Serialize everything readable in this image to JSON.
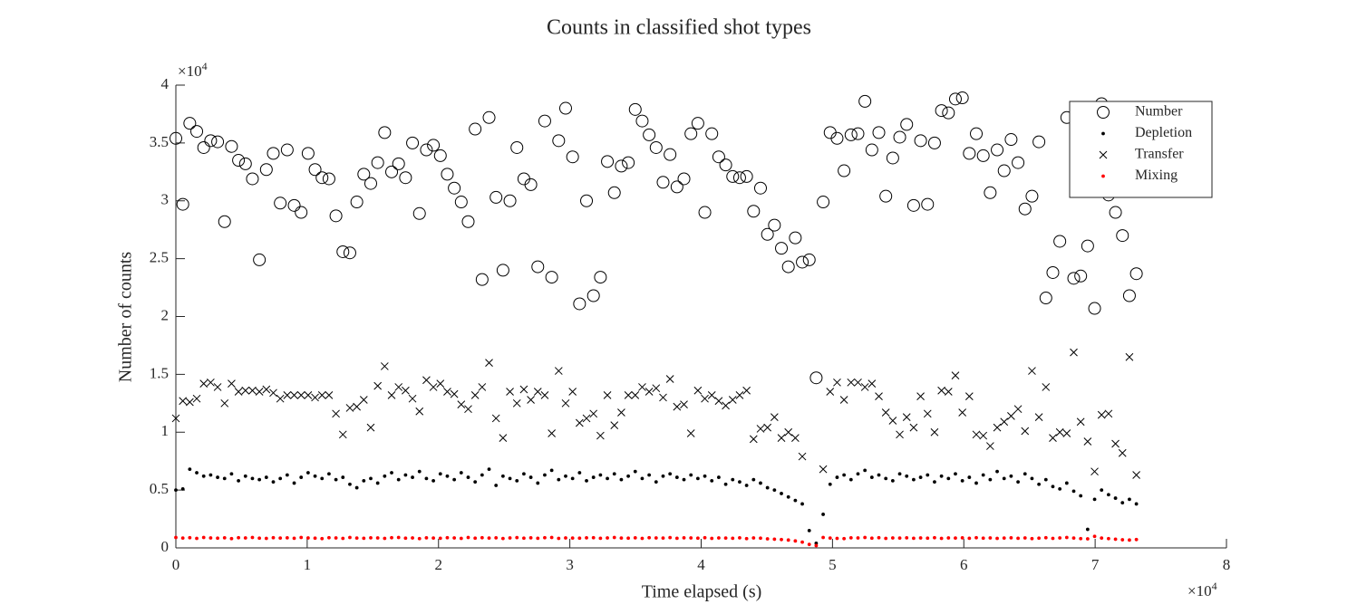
{
  "chart_data": {
    "type": "scatter",
    "title": "Counts in classified shot types",
    "x_label": "Time elapsed (s)",
    "y_label": "Number of counts",
    "x_exponent": {
      "base": "×10",
      "power": "4"
    },
    "y_exponent": {
      "base": "×10",
      "power": "4"
    },
    "xlim": [
      0,
      80000
    ],
    "ylim": [
      0,
      40000
    ],
    "xticks": [
      0,
      {
        "value": 10000,
        "label": "1"
      },
      {
        "value": 20000,
        "label": "2"
      },
      {
        "value": 30000,
        "label": "3"
      },
      {
        "value": 40000,
        "label": "4"
      },
      {
        "value": 50000,
        "label": "5"
      },
      {
        "value": 60000,
        "label": "6"
      },
      {
        "value": 70000,
        "label": "7"
      },
      {
        "value": 80000,
        "label": "8"
      }
    ],
    "yticks": [
      0,
      {
        "value": 5000,
        "label": "0.5"
      },
      {
        "value": 10000,
        "label": "1"
      },
      {
        "value": 15000,
        "label": "1.5"
      },
      {
        "value": 20000,
        "label": "2"
      },
      {
        "value": 25000,
        "label": "2.5"
      },
      {
        "value": 30000,
        "label": "3"
      },
      {
        "value": 35000,
        "label": "3.5"
      },
      {
        "value": 40000,
        "label": "4"
      }
    ],
    "grid": false,
    "legend": "top-right",
    "x": [
      0,
      530,
      1060,
      1590,
      2120,
      2650,
      3180,
      3710,
      4240,
      4770,
      5300,
      5830,
      6360,
      6890,
      7420,
      7950,
      8480,
      9010,
      9540,
      10070,
      10600,
      11130,
      11660,
      12190,
      12720,
      13250,
      13780,
      14310,
      14840,
      15370,
      15900,
      16430,
      16960,
      17490,
      18020,
      18550,
      19080,
      19610,
      20140,
      20670,
      21200,
      21730,
      22260,
      22790,
      23320,
      23850,
      24380,
      24910,
      25440,
      25970,
      26500,
      27030,
      27560,
      28090,
      28620,
      29150,
      29680,
      30210,
      30740,
      31270,
      31800,
      32330,
      32860,
      33390,
      33920,
      34450,
      34980,
      35510,
      36040,
      36570,
      37100,
      37630,
      38160,
      38690,
      39220,
      39750,
      40280,
      40810,
      41340,
      41870,
      42400,
      42930,
      43460,
      43990,
      44520,
      45050,
      45580,
      46110,
      46640,
      47170,
      47700,
      48230,
      48760,
      49290,
      49820,
      50350,
      50880,
      51410,
      51940,
      52470,
      53000,
      53530,
      54060,
      54590,
      55120,
      55650,
      56180,
      56710,
      57240,
      57770,
      58300,
      58830,
      59360,
      59890,
      60420,
      60950,
      61480,
      62010,
      62540,
      63070,
      63600,
      64130,
      64660,
      65190,
      65720,
      66250,
      66780,
      67310,
      67840,
      68370,
      68900,
      69430,
      69960,
      70490,
      71020,
      71550,
      72080,
      72610,
      73140
    ],
    "series": [
      {
        "name": "Number",
        "marker": "circle",
        "color": "#000000",
        "values": [
          35400,
          29700,
          36700,
          36000,
          34600,
          35200,
          35100,
          28200,
          34700,
          33500,
          33200,
          31900,
          24900,
          32700,
          34100,
          29800,
          34400,
          29600,
          29000,
          34100,
          32700,
          32000,
          31900,
          28700,
          25600,
          25500,
          29900,
          32300,
          31500,
          33300,
          35900,
          32500,
          33200,
          32000,
          35000,
          28900,
          34400,
          34800,
          33900,
          32300,
          31100,
          29900,
          28200,
          36200,
          23200,
          37200,
          30300,
          24000,
          30000,
          34600,
          31900,
          31400,
          24300,
          36900,
          23400,
          35200,
          38000,
          33800,
          21100,
          30000,
          21800,
          23400,
          33400,
          30700,
          33000,
          33300,
          37900,
          36900,
          35700,
          34600,
          31600,
          34000,
          31200,
          31900,
          35800,
          36700,
          29000,
          35800,
          33800,
          33100,
          32100,
          32000,
          32100,
          29100,
          31100,
          27100,
          27900,
          25900,
          24300,
          26800,
          24700,
          24900,
          14700,
          29900,
          35900,
          35400,
          32600,
          35700,
          35800,
          38600,
          34400,
          35900,
          30400,
          33700,
          35500,
          36600,
          29600,
          35200,
          29700,
          35000,
          37800,
          37600,
          38800,
          38900,
          34100,
          35800,
          33900,
          30700,
          34400,
          32600,
          35300,
          33300,
          29300,
          30400,
          35100,
          21600,
          23800,
          26500,
          37200,
          23300,
          23500,
          26100,
          20700,
          38400,
          30500,
          29000,
          27000,
          21800,
          23700
        ]
      },
      {
        "name": "Depletion",
        "marker": "dot",
        "color": "#000000",
        "values": [
          5000,
          5100,
          6800,
          6500,
          6200,
          6300,
          6100,
          6000,
          6400,
          5800,
          6200,
          6000,
          5900,
          6100,
          5700,
          6000,
          6300,
          5600,
          6100,
          6500,
          6200,
          6000,
          6400,
          5900,
          6100,
          5500,
          5200,
          5800,
          6000,
          5600,
          6200,
          6500,
          5900,
          6300,
          6100,
          6600,
          6000,
          5800,
          6400,
          6200,
          5900,
          6500,
          6100,
          5700,
          6300,
          6800,
          5400,
          6200,
          6000,
          5800,
          6400,
          6100,
          5600,
          6300,
          6700,
          5900,
          6200,
          6000,
          6500,
          5800,
          6100,
          6300,
          6000,
          6400,
          5900,
          6200,
          6600,
          6000,
          6300,
          5700,
          6200,
          6400,
          6100,
          5900,
          6300,
          6000,
          6200,
          5800,
          6100,
          5500,
          5900,
          5700,
          5400,
          5900,
          5600,
          5200,
          5000,
          4700,
          4400,
          4100,
          3800,
          1500,
          400,
          2900,
          5500,
          6100,
          6300,
          5900,
          6400,
          6700,
          6100,
          6300,
          6000,
          5800,
          6400,
          6200,
          5900,
          6100,
          6300,
          5700,
          6200,
          6000,
          6400,
          5800,
          6100,
          5600,
          6300,
          5900,
          6600,
          6000,
          6200,
          5700,
          6400,
          6000,
          5500,
          5900,
          5300,
          5100,
          5600,
          4900,
          4500,
          1600,
          4200,
          5000,
          4600,
          4300,
          3900,
          4200,
          3800
        ]
      },
      {
        "name": "Transfer",
        "marker": "cross",
        "color": "#000000",
        "values": [
          11200,
          12700,
          12600,
          12900,
          14200,
          14300,
          13900,
          12500,
          14200,
          13500,
          13600,
          13600,
          13500,
          13700,
          13400,
          12900,
          13200,
          13200,
          13200,
          13200,
          13000,
          13200,
          13200,
          11600,
          9800,
          12100,
          12200,
          12800,
          10400,
          14000,
          15700,
          13200,
          13900,
          13600,
          12900,
          11800,
          14500,
          13900,
          14200,
          13500,
          13300,
          12400,
          12000,
          13200,
          13900,
          16000,
          11200,
          9500,
          13500,
          12500,
          13700,
          12800,
          13500,
          13200,
          9900,
          15300,
          12500,
          13500,
          10800,
          11200,
          11600,
          9700,
          13200,
          10600,
          11700,
          13200,
          13200,
          13900,
          13500,
          13800,
          13000,
          14600,
          12200,
          12400,
          9900,
          13600,
          12900,
          13200,
          12700,
          12300,
          12800,
          13200,
          13600,
          9400,
          10300,
          10400,
          11300,
          9500,
          10000,
          9500,
          7900,
          null,
          null,
          6800,
          13500,
          14300,
          12800,
          14300,
          14300,
          13900,
          14200,
          13100,
          11700,
          11000,
          9800,
          11300,
          10400,
          13100,
          11600,
          10000,
          13600,
          13500,
          14900,
          11700,
          13100,
          9800,
          9700,
          8800,
          10400,
          10900,
          11400,
          12000,
          10100,
          15300,
          11300,
          13900,
          9500,
          10000,
          9900,
          16900,
          10900,
          9200,
          6600,
          11500,
          11600,
          9000,
          8200,
          16500,
          6300
        ]
      },
      {
        "name": "Mixing",
        "marker": "dot",
        "color": "#ff0000",
        "values": [
          900,
          850,
          880,
          820,
          900,
          860,
          840,
          870,
          800,
          880,
          860,
          900,
          840,
          820,
          880,
          850,
          870,
          830,
          900,
          860,
          840,
          800,
          880,
          860,
          820,
          900,
          850,
          830,
          870,
          860,
          820,
          880,
          900,
          840,
          860,
          800,
          870,
          850,
          830,
          880,
          860,
          820,
          900,
          840,
          880,
          850,
          870,
          810,
          860,
          890,
          840,
          870,
          830,
          880,
          900,
          820,
          860,
          850,
          840,
          870,
          880,
          830,
          860,
          900,
          850,
          840,
          870,
          820,
          880,
          860,
          850,
          890,
          830,
          870,
          860,
          840,
          880,
          820,
          860,
          850,
          830,
          870,
          800,
          860,
          840,
          780,
          750,
          720,
          680,
          600,
          500,
          300,
          200,
          900,
          850,
          820,
          800,
          870,
          860,
          900,
          840,
          880,
          820,
          860,
          850,
          870,
          830,
          860,
          840,
          880,
          820,
          860,
          850,
          870,
          830,
          880,
          840,
          860,
          820,
          850,
          870,
          830,
          860,
          800,
          840,
          880,
          820,
          860,
          900,
          850,
          800,
          780,
          1000,
          850,
          800,
          750,
          700,
          680,
          720
        ]
      }
    ]
  }
}
